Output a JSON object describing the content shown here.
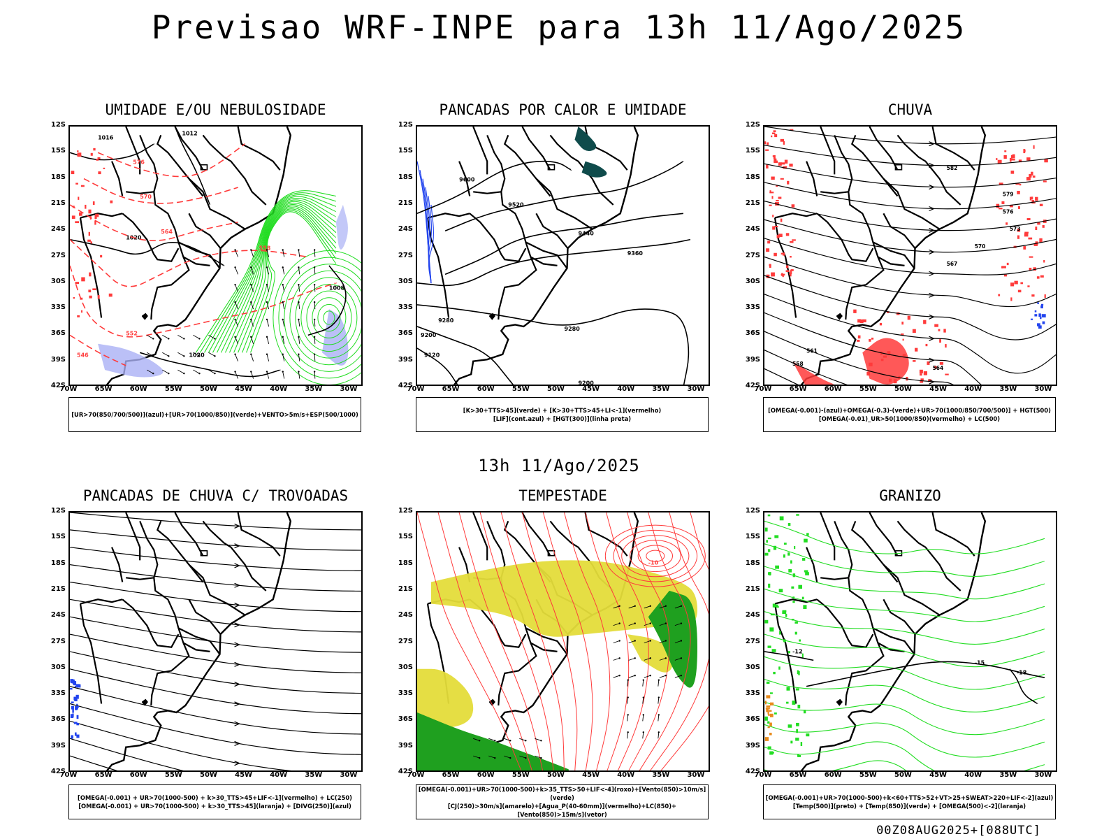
{
  "title": "Previsao WRF-INPE  para 13h 11/Ago/2025",
  "subtitle": "13h 11/Ago/2025",
  "footer": "00Z08AUG2025+[088UTC]",
  "axes": {
    "lat_labels": [
      "12S",
      "15S",
      "18S",
      "21S",
      "24S",
      "27S",
      "30S",
      "33S",
      "36S",
      "39S",
      "42S"
    ],
    "lon_labels": [
      "70W",
      "65W",
      "60W",
      "55W",
      "50W",
      "45W",
      "40W",
      "35W",
      "30W"
    ]
  },
  "panels": [
    {
      "title": "UMIDADE E/OU NEBULOSIDADE",
      "legend": [
        "[UR>70(850/700/500)](azul)+[UR>70(1000/850)](verde)+VENTO>5m/s+ESP(500/1000)"
      ],
      "style": "umidade"
    },
    {
      "title": "PANCADAS POR CALOR E UMIDADE",
      "legend": [
        "[K>30+TTS>45](verde) + [K>30+TTS>45+LI<-1](vermelho)",
        "[LIF](cont.azul) + [HGT(300)](linha preta)"
      ],
      "style": "calor"
    },
    {
      "title": "CHUVA",
      "legend": [
        "[OMEGA(-0.001)-(azul)+OMEGA(-0.3)-(verde)+UR>70(1000/850/700/500)] + HGT(500)",
        "[OMEGA(-0.01)_UR>50(1000/850)(vermelho) + LC(500)"
      ],
      "style": "chuva"
    },
    {
      "title": "PANCADAS DE CHUVA C/ TROVOADAS",
      "legend": [
        "[OMEGA(-0.001) + UR>70(1000-500) + k>30_TTS>45+LIF<-1](vermelho) + LC(250)",
        "[OMEGA(-0.001) + UR>70(1000-500) + k>30_TTS>45](laranja) + [DIVG(250)](azul)"
      ],
      "style": "trovoadas"
    },
    {
      "title": "TEMPESTADE",
      "legend": [
        "[OMEGA(-0.001)+UR>70(1000-500)+k>35_TTS>50+LIF<-4](roxo)+[Vento(850)>10m/s](verde)",
        "[CJ(250)>30m/s](amarelo)+[Agua_P(40-60mm)](vermelho)+LC(850)+[Vento(850)>15m/s](vetor)"
      ],
      "style": "tempestade"
    },
    {
      "title": "GRANIZO",
      "legend": [
        "[OMEGA(-0.001)+UR>70(1000-500)+k<60+TTS>52+VT>25+SWEAT>220+LIF<-2](azul)",
        "[Temp(500)](preto) + [Temp(850)](verde) + [OMEGA(500)<-2](laranja)"
      ],
      "style": "granizo"
    }
  ],
  "contour_labels": {
    "umidade": [
      "1016",
      "1012",
      "1020",
      "1024",
      "1008",
      "576",
      "570",
      "564",
      "558",
      "552",
      "546"
    ],
    "calor": [
      "9600",
      "9520",
      "9440",
      "9360",
      "9280",
      "9200",
      "9120"
    ],
    "chuva": [
      "582",
      "579",
      "576",
      "573",
      "570",
      "567",
      "564",
      "561",
      "558"
    ],
    "tempestade": [
      "-10"
    ],
    "granizo": [
      "-15",
      "-18",
      "-12"
    ]
  },
  "colors": {
    "red": "#ff3b3b",
    "green": "#22dd22",
    "blue": "#2244ee",
    "lavender": "#aab0f5",
    "yellow": "#e4dc3a",
    "darkgreen": "#1fa01f",
    "teal": "#0f4b4b",
    "orange": "#e88a1a"
  }
}
